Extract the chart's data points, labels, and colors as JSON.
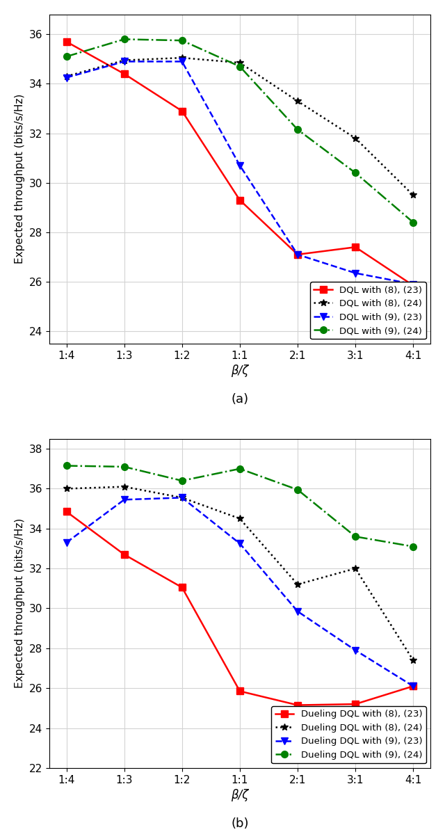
{
  "x_labels": [
    "1:4",
    "1:3",
    "1:2",
    "1:1",
    "2:1",
    "3:1",
    "4:1"
  ],
  "x_values": [
    0,
    1,
    2,
    3,
    4,
    5,
    6
  ],
  "subplot_a": {
    "title": "(a)",
    "ylabel": "Expected throughput (bits/s/Hz)",
    "xlabel": "β/ζ",
    "ylim": [
      23.5,
      36.8
    ],
    "yticks": [
      24,
      26,
      28,
      30,
      32,
      34,
      36
    ],
    "series": [
      {
        "label": "DQL with (8), (23)",
        "color": "red",
        "linestyle": "-",
        "marker": "s",
        "values": [
          35.7,
          34.4,
          32.9,
          29.3,
          27.1,
          27.4,
          25.85
        ]
      },
      {
        "label": "DQL with (8), (24)",
        "color": "black",
        "linestyle": ":",
        "marker": "*",
        "values": [
          34.3,
          34.95,
          35.05,
          34.85,
          33.3,
          31.8,
          29.5
        ]
      },
      {
        "label": "DQL with (9), (23)",
        "color": "blue",
        "linestyle": "--",
        "marker": "v",
        "values": [
          34.25,
          34.9,
          34.9,
          30.7,
          27.1,
          26.35,
          25.9
        ]
      },
      {
        "label": "DQL with (9), (24)",
        "color": "green",
        "linestyle": "-.",
        "marker": "o",
        "values": [
          35.1,
          35.8,
          35.75,
          34.7,
          32.15,
          30.4,
          28.4
        ]
      }
    ]
  },
  "subplot_b": {
    "title": "(b)",
    "ylabel": "Expected throughput (bits/s/Hz)",
    "xlabel": "β/ζ",
    "ylim": [
      22.0,
      38.5
    ],
    "yticks": [
      22,
      24,
      26,
      28,
      30,
      32,
      34,
      36,
      38
    ],
    "series": [
      {
        "label": "Dueling DQL with (8), (23)",
        "color": "red",
        "linestyle": "-",
        "marker": "s",
        "values": [
          34.85,
          32.7,
          31.05,
          25.85,
          25.15,
          25.2,
          26.1
        ]
      },
      {
        "label": "Dueling DQL with (8), (24)",
        "color": "black",
        "linestyle": ":",
        "marker": "*",
        "values": [
          36.0,
          36.1,
          35.55,
          34.5,
          31.2,
          32.0,
          27.4
        ]
      },
      {
        "label": "Dueling DQL with (9), (23)",
        "color": "blue",
        "linestyle": "--",
        "marker": "v",
        "values": [
          33.3,
          35.45,
          35.55,
          33.25,
          29.85,
          27.9,
          26.1
        ]
      },
      {
        "label": "Dueling DQL with (9), (24)",
        "color": "green",
        "linestyle": "-.",
        "marker": "o",
        "values": [
          37.15,
          37.1,
          36.4,
          37.0,
          35.95,
          33.6,
          33.1
        ]
      }
    ]
  }
}
